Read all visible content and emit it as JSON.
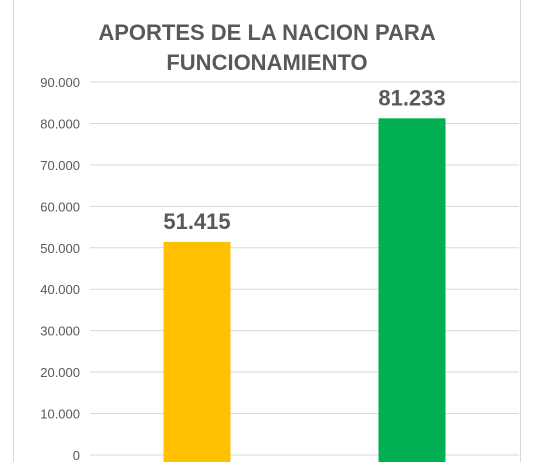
{
  "chart_data": {
    "type": "bar",
    "title_lines": [
      "APORTES DE LA NACION PARA",
      "FUNCIONAMIENTO"
    ],
    "categories": [
      "",
      ""
    ],
    "values": [
      51415,
      81233
    ],
    "data_labels": [
      "51.415",
      "81.233"
    ],
    "bar_colors": [
      "#FFC000",
      "#00B050"
    ],
    "ylim": [
      0,
      90000
    ],
    "yticks": [
      0,
      10000,
      20000,
      30000,
      40000,
      50000,
      60000,
      70000,
      80000,
      90000
    ],
    "ytick_labels": [
      "0",
      "10.000",
      "20.000",
      "30.000",
      "40.000",
      "50.000",
      "60.000",
      "70.000",
      "80.000",
      "90.000"
    ],
    "xlabel": "",
    "ylabel": "",
    "grid": true,
    "legend": "none"
  }
}
